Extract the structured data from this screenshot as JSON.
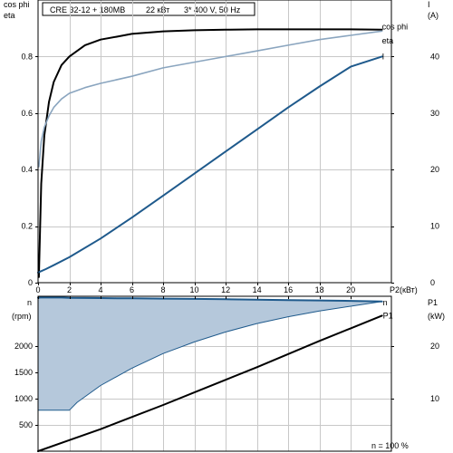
{
  "header": {
    "pump": "CRE 32-12 + 180MB",
    "power": "22 кВт",
    "supply": "3* 400 V, 50 Hz"
  },
  "colors": {
    "eta": "#000000",
    "cos_phi": "#8aa5bf",
    "current": "#1f5a8c",
    "speed_fill": "#b5c8db",
    "speed_line": "#1f5a8c",
    "p1": "#000000"
  },
  "chart_data": [
    {
      "type": "line",
      "ylabel_left": [
        "cos phi",
        "eta"
      ],
      "ylabel_right": [
        "I",
        "(A)"
      ],
      "xlabel": "P2(кВт)",
      "x_ticks": [
        0,
        2,
        4,
        6,
        8,
        10,
        12,
        14,
        16,
        18,
        20
      ],
      "y_left_ticks": [
        0,
        0.2,
        0.4,
        0.6,
        0.8
      ],
      "y_right_ticks": [
        0,
        10,
        20,
        30,
        40
      ],
      "xlim": [
        0,
        22.6
      ],
      "ylim_left": [
        0,
        1.0
      ],
      "ylim_right": [
        0,
        50
      ],
      "grid": true,
      "series": [
        {
          "name": "eta",
          "axis": "left",
          "x": [
            0.05,
            0.2,
            0.4,
            0.7,
            1.0,
            1.5,
            2,
            3,
            4,
            5,
            6,
            8,
            10,
            12,
            14,
            16,
            18,
            20,
            22
          ],
          "values": [
            0.02,
            0.35,
            0.52,
            0.64,
            0.71,
            0.77,
            0.8,
            0.84,
            0.86,
            0.87,
            0.88,
            0.889,
            0.893,
            0.895,
            0.896,
            0.896,
            0.896,
            0.896,
            0.895
          ]
        },
        {
          "name": "cos phi",
          "axis": "left",
          "x": [
            0.05,
            0.2,
            0.4,
            0.7,
            1.0,
            1.5,
            2,
            3,
            4,
            6,
            8,
            10,
            12,
            14,
            16,
            18,
            20,
            22
          ],
          "values": [
            0.41,
            0.5,
            0.55,
            0.59,
            0.62,
            0.65,
            0.67,
            0.69,
            0.705,
            0.73,
            0.76,
            0.78,
            0.8,
            0.82,
            0.84,
            0.86,
            0.875,
            0.89
          ]
        },
        {
          "name": "I",
          "axis": "right",
          "x": [
            0,
            0.5,
            1,
            2,
            4,
            6,
            8,
            10,
            12,
            14,
            16,
            18,
            20,
            22
          ],
          "values": [
            1.8,
            2.4,
            3.1,
            4.5,
            7.8,
            11.5,
            15.4,
            19.3,
            23.2,
            27.1,
            31.0,
            34.7,
            38.2,
            40.0
          ]
        }
      ]
    },
    {
      "type": "line",
      "ylabel_left": [
        "n",
        "(rpm)"
      ],
      "ylabel_right": [
        "P1",
        "(kW)"
      ],
      "x_ticks": [
        0,
        2,
        4,
        6,
        8,
        10,
        12,
        14,
        16,
        18,
        20
      ],
      "y_left_ticks": [
        500,
        1000,
        1500,
        2000
      ],
      "y_right_ticks": [
        10,
        20
      ],
      "xlim": [
        0,
        22.6
      ],
      "ylim_left": [
        0,
        2950
      ],
      "ylim_right": [
        0,
        29.5
      ],
      "grid": true,
      "annotation": "n  = 100 %",
      "series": [
        {
          "name": "n",
          "axis": "left",
          "x": [
            0,
            0.2,
            1.5,
            2,
            3,
            4,
            5,
            6,
            8,
            10,
            12,
            14,
            16,
            18,
            20,
            22
          ],
          "values": [
            2920,
            2930,
            2925,
            2920,
            2918,
            2915,
            2912,
            2910,
            2905,
            2900,
            2893,
            2886,
            2878,
            2870,
            2862,
            2850
          ],
          "lower_x": [
            0,
            2.0,
            2.5,
            4,
            6,
            8,
            10,
            12,
            14,
            16,
            18,
            20,
            22
          ],
          "lower_values": [
            780,
            780,
            930,
            1250,
            1580,
            1860,
            2080,
            2270,
            2430,
            2560,
            2670,
            2760,
            2850
          ]
        },
        {
          "name": "P1",
          "axis": "right",
          "x": [
            0,
            2,
            4,
            6,
            8,
            10,
            12,
            14,
            16,
            18,
            20,
            22
          ],
          "values": [
            0,
            2.1,
            4.2,
            6.5,
            8.8,
            11.2,
            13.6,
            16.0,
            18.5,
            21.0,
            23.4,
            25.8
          ]
        }
      ]
    }
  ]
}
